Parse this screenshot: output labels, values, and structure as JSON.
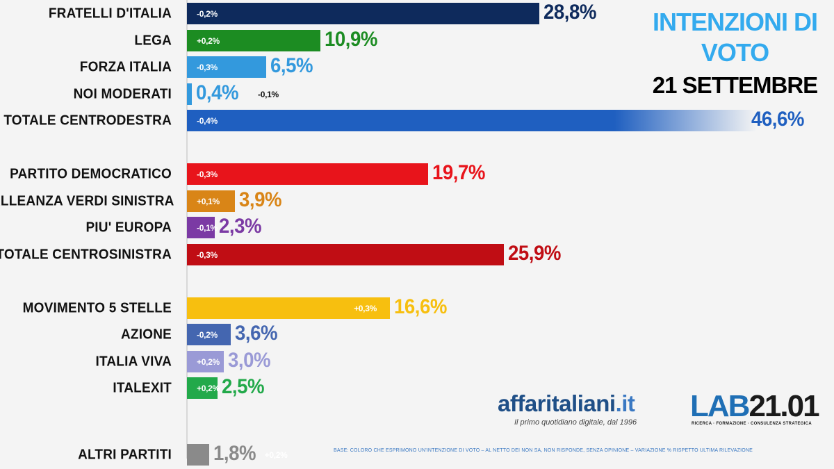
{
  "header": {
    "title_line1": "INTENZIONI DI",
    "title_line2": "VOTO",
    "date": "21 SETTEMBRE"
  },
  "brand": {
    "name": "affaritaliani",
    "tld": ".it",
    "tagline": "Il primo quotidiano digitale, dal 1996",
    "lab_prefix": "LAB",
    "lab_suffix": "21.01",
    "lab_tagline": "RICERCA · FORMAZIONE · CONSULENZA STRATEGICA"
  },
  "footnote": "BASE: COLORO CHE ESPRIMONO UN'INTENZIONE DI VOTO – AL NETTO DEI NON SA, NON RISPONDE, SENZA OPINIONE – VARIAZIONE % RISPETTO ULTIMA RILEVAZIONE",
  "colors": {
    "title_blue": "#33aaee",
    "brand_blue": "#1f4f87"
  },
  "chart_data": {
    "type": "bar",
    "orientation": "horizontal",
    "xlim": [
      0,
      50
    ],
    "grid": false,
    "categories": [
      "FRATELLI D'ITALIA",
      "LEGA",
      "FORZA ITALIA",
      "NOI MODERATI",
      "TOTALE CENTRODESTRA",
      "PARTITO DEMOCRATICO",
      "ALLEANZA VERDI SINISTRA",
      "PIU' EUROPA",
      "TOTALE CENTROSINISTRA",
      "MOVIMENTO 5 STELLE",
      "AZIONE",
      "ITALIA VIVA",
      "ITALEXIT",
      "ALTRI PARTITI"
    ],
    "values": [
      28.8,
      10.9,
      6.5,
      0.4,
      46.6,
      19.7,
      3.9,
      2.3,
      25.9,
      16.6,
      3.6,
      3.0,
      2.5,
      1.8
    ],
    "value_labels": [
      "28,8%",
      "10,9%",
      "6,5%",
      "0,4%",
      "46,6%",
      "19,7%",
      "3,9%",
      "2,3%",
      "25,9%",
      "16,6%",
      "3,6%",
      "3,0%",
      "2,5%",
      "1,8%"
    ],
    "changes": [
      "-0,2%",
      "+0,2%",
      "-0,3%",
      "-0,1%",
      "-0,4%",
      "-0,3%",
      "+0,1%",
      "-0,1%",
      "-0,3%",
      "+0,3%",
      "-0,2%",
      "+0,2%",
      "+0,2%",
      "+0,2%"
    ],
    "colors": [
      "#0e2a5c",
      "#1c8c22",
      "#3399dd",
      "#3399dd",
      "#1f5fc0",
      "#e8141b",
      "#d98517",
      "#7b3aa4",
      "#c00d14",
      "#f7bf0f",
      "#4466b0",
      "#9a9ad6",
      "#22a94a",
      "#8a8a8a"
    ],
    "groups": [
      [
        0,
        1,
        2,
        3,
        4
      ],
      [
        5,
        6,
        7,
        8
      ],
      [
        9,
        10,
        11,
        12
      ],
      [
        13
      ]
    ]
  }
}
